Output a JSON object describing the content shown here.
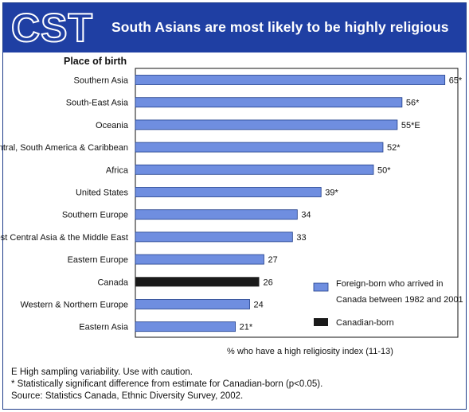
{
  "header": {
    "logo_text": "CST",
    "title": "South Asians are most likely to be highly religious"
  },
  "footnotes": {
    "e_note": "E  High sampling variability. Use with caution.",
    "star_note": "*  Statistically significant difference from estimate for Canadian-born (p<0.05).",
    "source": "Source: Statistics Canada, Ethnic Diversity Survey, 2002."
  },
  "colors": {
    "header_bg": "#1f3fa3",
    "foreign_born_bar": "#6f8ee0",
    "canadian_born_bar": "#1a1a1a"
  },
  "chart_data": {
    "type": "bar",
    "orientation": "horizontal",
    "title": "South Asians are most likely to be highly religious",
    "ylabel": "Place of birth",
    "xlabel": "% who have a high religiosity index (11-13)",
    "xlim": [
      0,
      67
    ],
    "grid": false,
    "legend_position": "bottom-right",
    "categories": [
      "Southern Asia",
      "South-East Asia",
      "Oceania",
      "Central, South America & Caribbean",
      "Africa",
      "United States",
      "Southern Europe",
      "West Central Asia & the Middle East",
      "Eastern Europe",
      "Canada",
      "Western & Northern Europe",
      "Eastern Asia"
    ],
    "values": [
      65,
      56,
      55,
      52,
      50,
      39,
      34,
      33,
      27,
      26,
      24,
      21
    ],
    "value_labels": [
      "65*",
      "56*",
      "55*E",
      "52*",
      "50*",
      "39*",
      "34",
      "33",
      "27",
      "26",
      "24",
      "21*"
    ],
    "group": [
      "foreign",
      "foreign",
      "foreign",
      "foreign",
      "foreign",
      "foreign",
      "foreign",
      "foreign",
      "foreign",
      "canadian",
      "foreign",
      "foreign"
    ],
    "series": [
      {
        "name": "Foreign-born who arrived in Canada between 1982 and 2001",
        "key": "foreign"
      },
      {
        "name": "Canadian-born",
        "key": "canadian"
      }
    ],
    "legend": {
      "foreign_line1": "Foreign-born who arrived in",
      "foreign_line2": "Canada between 1982 and 2001",
      "canadian": "Canadian-born"
    }
  }
}
